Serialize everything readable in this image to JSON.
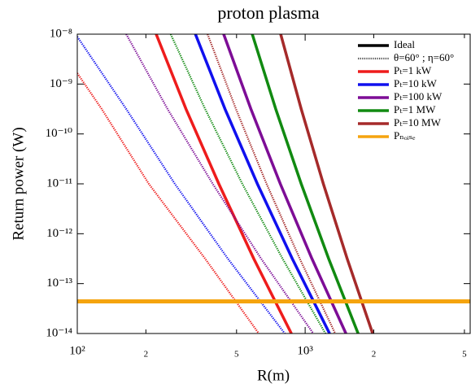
{
  "chart_data": {
    "type": "line",
    "title": "proton plasma",
    "x_label": "R(m)",
    "y_label": "Return power (W)",
    "log_x": true,
    "log_y": true,
    "xlim": [
      100,
      5300
    ],
    "ylim": [
      1e-14,
      1e-08
    ],
    "xticks": [
      {
        "value": 100,
        "label": "10²"
      },
      {
        "value": 200,
        "label": "2"
      },
      {
        "value": 500,
        "label": "5"
      },
      {
        "value": 1000,
        "label": "10³"
      },
      {
        "value": 2000,
        "label": "2"
      },
      {
        "value": 5000,
        "label": "5"
      }
    ],
    "yticks": [
      {
        "value": 1e-14,
        "label": "10⁻¹⁴"
      },
      {
        "value": 1e-13,
        "label": "10⁻¹³"
      },
      {
        "value": 1e-12,
        "label": "10⁻¹²"
      },
      {
        "value": 1e-11,
        "label": "10⁻¹¹"
      },
      {
        "value": 1e-10,
        "label": "10⁻¹⁰"
      },
      {
        "value": 1e-09,
        "label": "10⁻⁹"
      },
      {
        "value": 1e-08,
        "label": "10⁻⁸"
      }
    ],
    "line_styles": [
      {
        "name": "Ideal",
        "color": "#000000",
        "dash": "solid"
      },
      {
        "name": "θ=60° ; η=60°",
        "color": "#555555",
        "dash": "dotted"
      }
    ],
    "series": [
      {
        "name": "Pₜ=1 kW",
        "color": "#ee1c1c",
        "x": [
          222,
          300,
          418,
          595,
          870
        ],
        "values": [
          1e-08,
          3.16e-10,
          1e-11,
          3.16e-13,
          1e-14
        ],
        "x_dotted": [
          100,
          128,
          206,
          364,
          626
        ],
        "values_dotted": [
          1.65e-09,
          3.16e-10,
          1e-11,
          3.16e-13,
          1e-14
        ]
      },
      {
        "name": "Pₜ=10 kW",
        "color": "#1010ee",
        "x": [
          330,
          445,
          617,
          878,
          1280
        ],
        "values": [
          1e-08,
          3.16e-10,
          1e-11,
          3.16e-13,
          1e-14
        ],
        "x_dotted": [
          100,
          164,
          268,
          458,
          814
        ],
        "values_dotted": [
          8.9e-09,
          3.16e-10,
          1e-11,
          3.16e-13,
          1e-14
        ]
      },
      {
        "name": "Pₜ=100 kW",
        "color": "#7d0d96",
        "x": [
          439,
          578,
          778,
          1071,
          1510
        ],
        "values": [
          1e-08,
          3.16e-10,
          1e-11,
          3.16e-13,
          1e-14
        ],
        "x_dotted": [
          164,
          249,
          393,
          641,
          1086
        ],
        "values_dotted": [
          1e-08,
          3.16e-10,
          1e-11,
          3.16e-13,
          1e-14
        ]
      },
      {
        "name": "Pₜ=1 MW",
        "color": "#118a11",
        "x": [
          586,
          743,
          961,
          1268,
          1708
        ],
        "values": [
          1e-08,
          3.16e-10,
          1e-11,
          3.16e-13,
          1e-14
        ],
        "x_dotted": [
          257,
          364,
          530,
          796,
          1228
        ],
        "values_dotted": [
          1e-08,
          3.16e-10,
          1e-11,
          3.16e-13,
          1e-14
        ]
      },
      {
        "name": "Pₜ=10 MW",
        "color": "#a52a2a",
        "x": [
          781,
          961,
          1202,
          1529,
          1978
        ],
        "values": [
          1e-08,
          3.16e-10,
          1e-11,
          3.16e-13,
          1e-14
        ],
        "x_dotted": [
          373,
          497,
          677,
          947,
          1355
        ],
        "values_dotted": [
          1e-08,
          3.16e-10,
          1e-11,
          3.16e-13,
          1e-14
        ]
      },
      {
        "name": "Pₙₒᵢₛₑ",
        "color": "#f5a40f",
        "values": [
          4.4e-14
        ]
      }
    ]
  }
}
